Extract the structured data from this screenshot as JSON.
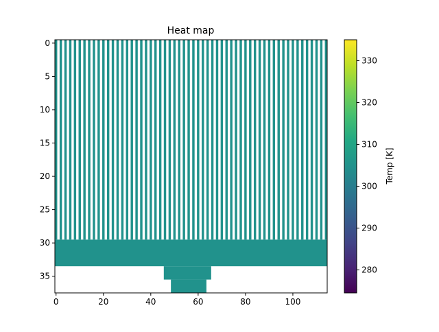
{
  "chart_data": {
    "type": "heatmap",
    "title": "Heat map",
    "xlabel": "",
    "ylabel": "",
    "colorbar_label": "Temp [K]",
    "colormap": "viridis",
    "vmin": 274.5,
    "vmax": 335.0,
    "nan_color": "#ffffff",
    "grid": false,
    "x_range": [
      -0.5,
      114.5
    ],
    "y_range": [
      37.5,
      -0.5
    ],
    "x_ticks": [
      0,
      20,
      40,
      60,
      80,
      100
    ],
    "y_ticks": [
      0,
      5,
      10,
      15,
      20,
      25,
      30,
      35
    ],
    "colorbar_ticks": [
      280,
      290,
      300,
      310,
      320,
      330
    ],
    "cell_value_K": 305,
    "columns": 115,
    "rows": 38,
    "regions": [
      {
        "name": "fins",
        "rows": [
          0,
          29
        ],
        "filled_columns": "every other column (0, 2, 4, …, 114)"
      },
      {
        "name": "base",
        "rows": [
          30,
          33
        ],
        "columns": [
          0,
          114
        ]
      },
      {
        "name": "step",
        "rows": [
          34,
          35
        ],
        "columns": [
          46,
          65
        ]
      },
      {
        "name": "stem",
        "rows": [
          36,
          37
        ],
        "columns": [
          49,
          63
        ]
      }
    ]
  }
}
